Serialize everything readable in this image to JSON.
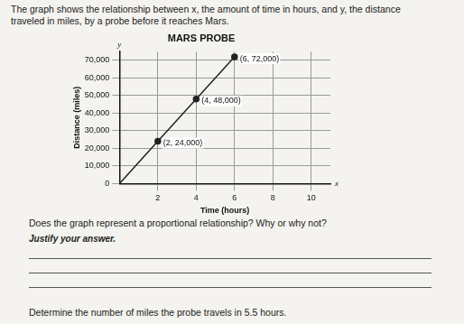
{
  "intro": "The graph shows the relationship between x, the amount of time in hours, and y, the distance traveled in miles, by a probe before it reaches Mars.",
  "chart_data": {
    "type": "line",
    "title": "MARS PROBE",
    "x_label": "Time (hours)",
    "y_label": "Distance (miles)",
    "axis_letters": {
      "x": "x",
      "y": "y"
    },
    "x": [
      0,
      2,
      4,
      6
    ],
    "values": [
      0,
      24000,
      48000,
      72000
    ],
    "value_labels": [
      null,
      "(2, 24,000)",
      "(4, 48,000)",
      "(6, 72,000)"
    ],
    "color": "#222222",
    "marker": "circle",
    "xlim": [
      0,
      11
    ],
    "xticks": [
      2,
      4,
      6,
      8,
      10
    ],
    "ylim": [
      0,
      75000
    ],
    "yticks": [
      {
        "value": 0,
        "label": "0"
      },
      {
        "value": 10000,
        "label": "10,000"
      },
      {
        "value": 20000,
        "label": "20,000"
      },
      {
        "value": 30000,
        "label": "30,000"
      },
      {
        "value": 40000,
        "label": "40,000"
      },
      {
        "value": 50000,
        "label": "50,000"
      },
      {
        "value": 60000,
        "label": "60,000"
      },
      {
        "value": 70000,
        "label": "70,000"
      }
    ],
    "grid": true,
    "data_labels": true
  },
  "questions": [
    {
      "text": "Does the graph represent a proportional relationship? Why or why not?",
      "prompt": "Justify your answer.",
      "answer_lines": 3
    },
    {
      "text": "Determine the number of miles the probe travels in 5.5 hours."
    }
  ]
}
